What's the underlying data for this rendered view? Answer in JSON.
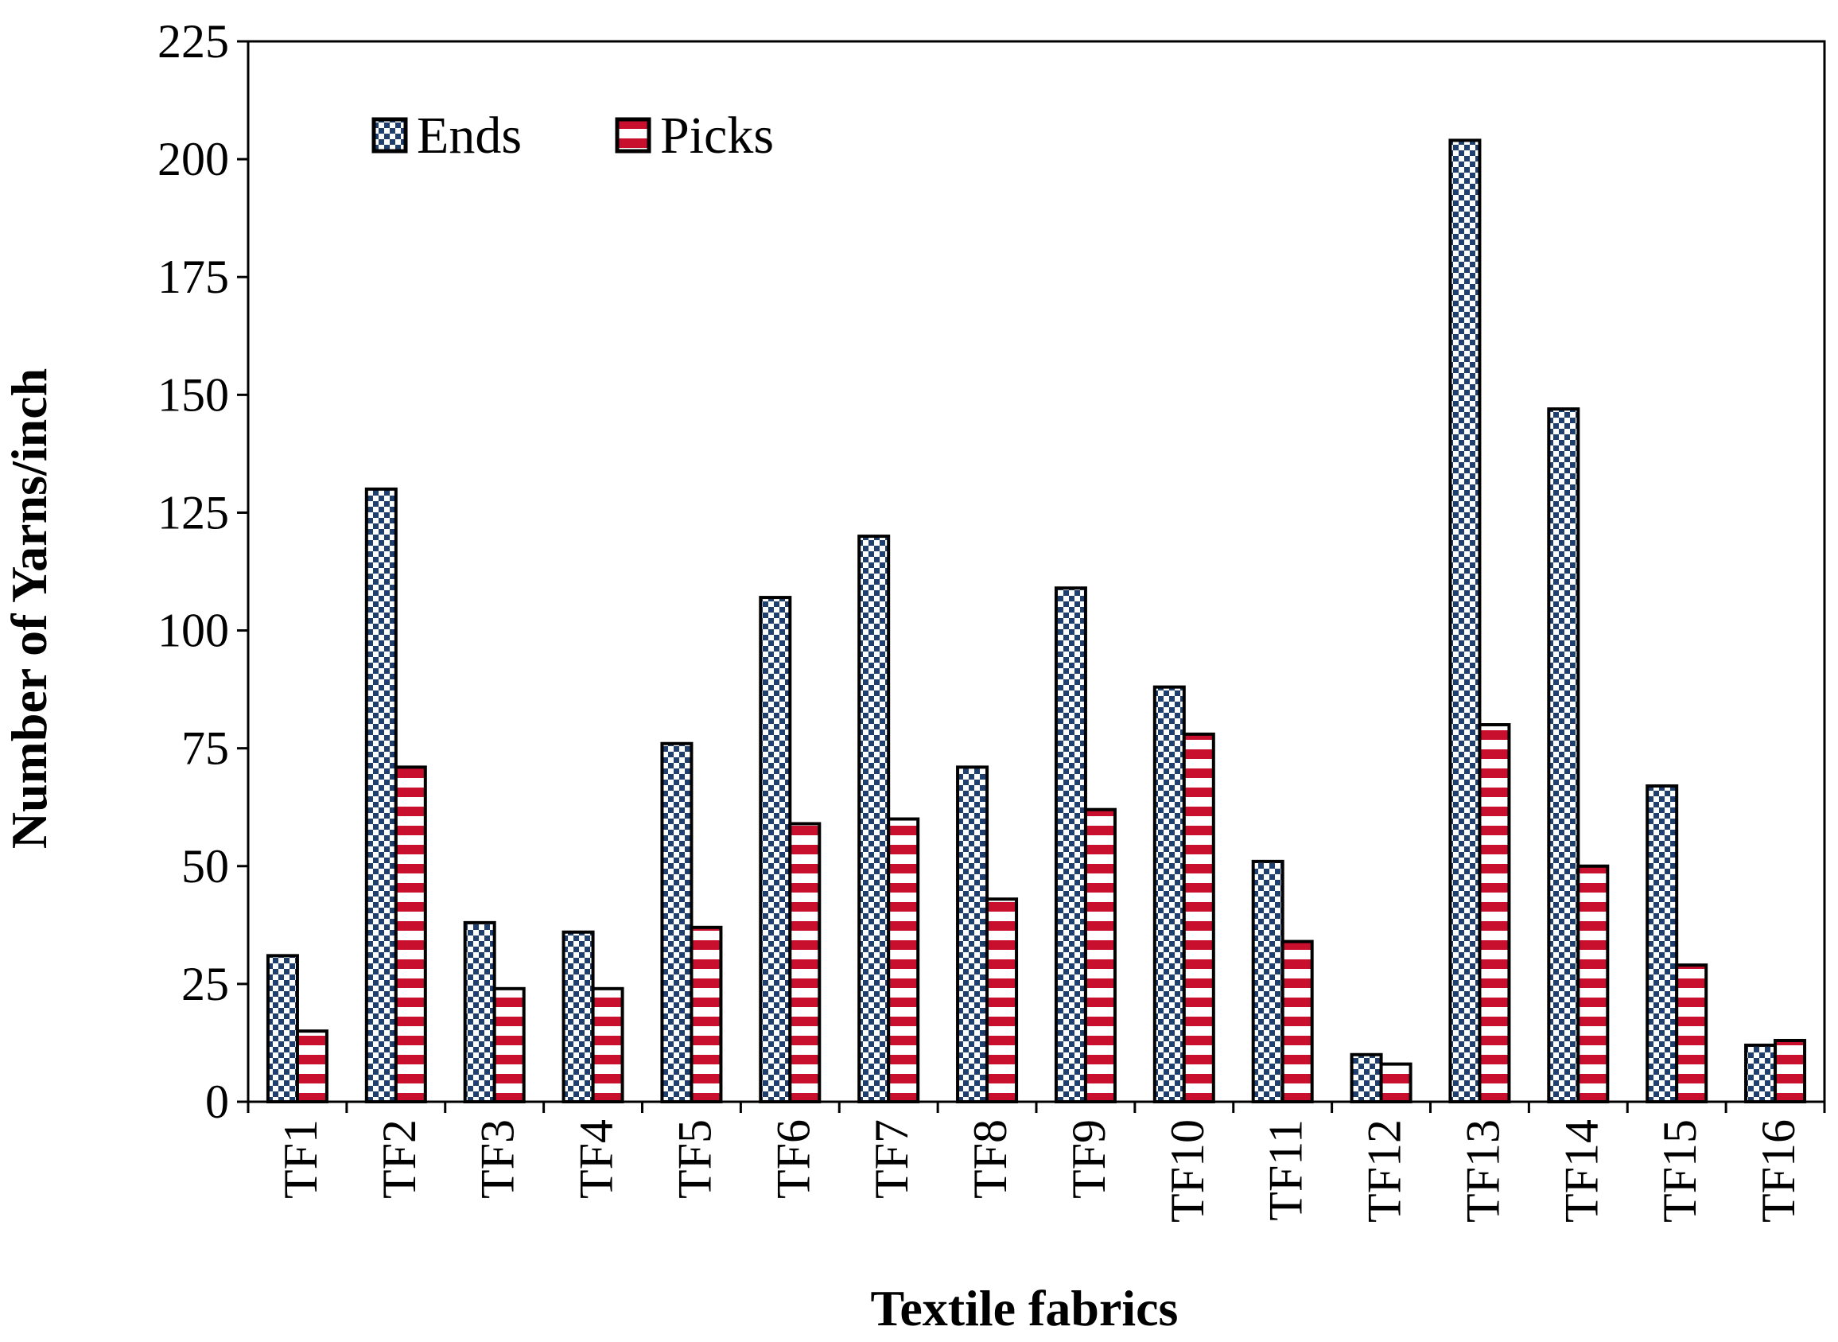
{
  "chart_data": {
    "type": "bar",
    "title": "",
    "xlabel": "Textile fabrics",
    "ylabel": "Number of  Yarns/inch",
    "ylim": [
      0,
      225
    ],
    "yticks": [
      0,
      25,
      50,
      75,
      100,
      125,
      150,
      175,
      200,
      225
    ],
    "categories": [
      "TF1",
      "TF2",
      "TF3",
      "TF4",
      "TF5",
      "TF6",
      "TF7",
      "TF8",
      "TF9",
      "TF10",
      "TF11",
      "TF12",
      "TF13",
      "TF14",
      "TF15",
      "TF16"
    ],
    "series": [
      {
        "name": "Ends",
        "values": [
          31,
          130,
          38,
          36,
          76,
          107,
          120,
          71,
          109,
          88,
          51,
          10,
          204,
          147,
          67,
          12
        ]
      },
      {
        "name": "Picks",
        "values": [
          15,
          71,
          24,
          24,
          37,
          59,
          60,
          43,
          62,
          78,
          34,
          8,
          80,
          50,
          29,
          13
        ]
      }
    ],
    "legend": "top-left",
    "grid": false,
    "colors": {
      "ends": "#1f3f6e",
      "picks": "#c8102e"
    }
  }
}
